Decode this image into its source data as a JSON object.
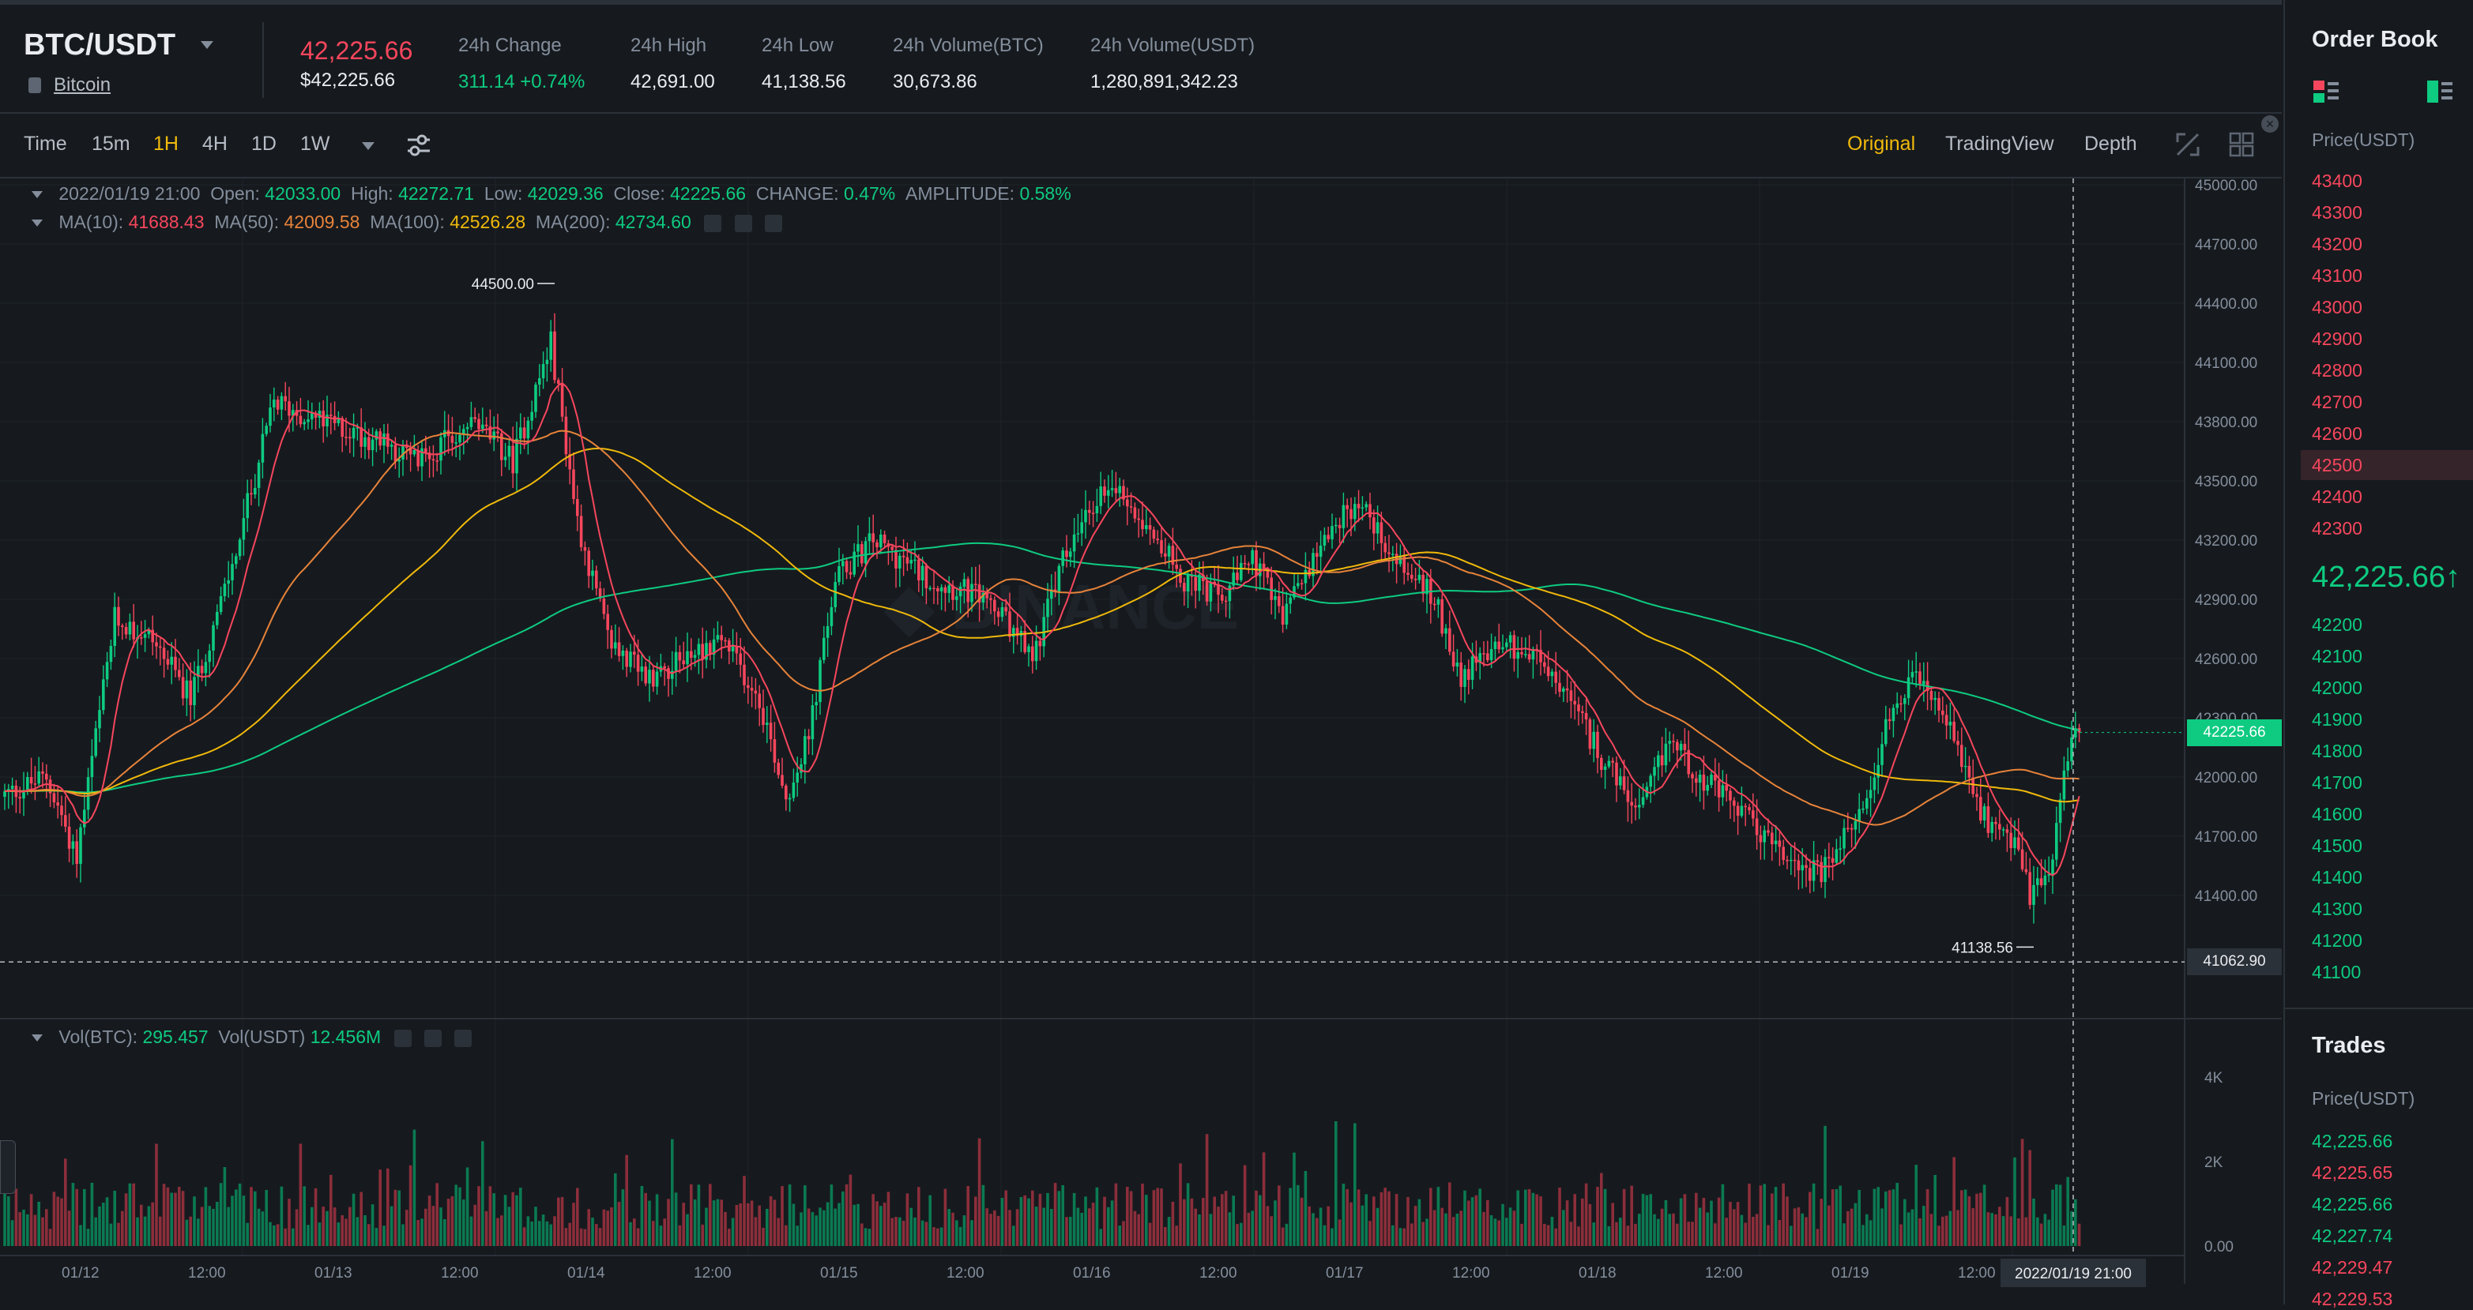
{
  "header": {
    "pair": "BTC/USDT",
    "coin_name": "Bitcoin",
    "last_price": "42,225.66",
    "last_price_usd": "$42,225.66",
    "stats": [
      {
        "label": "24h Change",
        "value": "311.14 +0.74%",
        "up": true
      },
      {
        "label": "24h High",
        "value": "42,691.00",
        "up": false
      },
      {
        "label": "24h Low",
        "value": "41,138.56",
        "up": false
      },
      {
        "label": "24h Volume(BTC)",
        "value": "30,673.86",
        "up": false
      },
      {
        "label": "24h Volume(USDT)",
        "value": "1,280,891,342.23",
        "up": false
      }
    ]
  },
  "toolbar": {
    "timeframes": [
      "Time",
      "15m",
      "1H",
      "4H",
      "1D",
      "1W"
    ],
    "active_timeframe": "1H",
    "views": [
      "Original",
      "TradingView",
      "Depth"
    ],
    "active_view": "Original"
  },
  "info": {
    "datetime": "2022/01/19 21:00",
    "open_label": "Open:",
    "open": "42033.00",
    "high_label": "High:",
    "high": "42272.71",
    "low_label": "Low:",
    "low": "42029.36",
    "close_label": "Close:",
    "close": "42225.66",
    "change_label": "CHANGE:",
    "change": "0.47%",
    "amplitude_label": "AMPLITUDE:",
    "amplitude": "0.58%",
    "ma10_label": "MA(10):",
    "ma10": "41688.43",
    "ma50_label": "MA(50):",
    "ma50": "42009.58",
    "ma100_label": "MA(100):",
    "ma100": "42526.28",
    "ma200_label": "MA(200):",
    "ma200": "42734.60",
    "vol_btc_label": "Vol(BTC):",
    "vol_btc": "295.457",
    "vol_usdt_label": "Vol(USDT)",
    "vol_usdt": "12.456M"
  },
  "chart_data": {
    "type": "candlestick",
    "price_axis": [
      45000,
      44700,
      44400,
      44100,
      43800,
      43500,
      43200,
      42900,
      42600,
      42300,
      42000,
      41700,
      41400
    ],
    "price_axis_labels": [
      "45000.00",
      "44700.00",
      "44400.00",
      "44100.00",
      "43800.00",
      "43500.00",
      "43200.00",
      "42900.00",
      "42600.00",
      "42300.00",
      "42000.00",
      "41700.00",
      "41400.00"
    ],
    "volume_axis_labels": [
      "4K",
      "2K",
      "0.00"
    ],
    "volume_axis": [
      4000,
      2000,
      0
    ],
    "time_labels": [
      "01/12",
      "12:00",
      "01/13",
      "12:00",
      "01/14",
      "12:00",
      "01/15",
      "12:00",
      "01/16",
      "12:00",
      "01/17",
      "12:00",
      "01/18",
      "12:00",
      "01/19",
      "12:00"
    ],
    "current_price_tag": "42225.66",
    "current_price": 42225.66,
    "crosshair_price_tag": "41062.90",
    "crosshair_price": 41062.9,
    "crosshair_time": "2022/01/19 21:00",
    "high_marker": "44500.00",
    "high_value": 44500,
    "low_marker": "41138.56",
    "low_value": 41138.56,
    "up_color": "#0ECB81",
    "down_color": "#F6465D",
    "ma_colors": {
      "ma10": "#F6465D",
      "ma50": "#E8833A",
      "ma100": "#F0B90B",
      "ma200": "#0ECB81"
    },
    "keypoints": [
      [
        0,
        41900
      ],
      [
        12,
        42000
      ],
      [
        20,
        41600
      ],
      [
        30,
        42800
      ],
      [
        40,
        42700
      ],
      [
        50,
        42400
      ],
      [
        60,
        43000
      ],
      [
        72,
        43900
      ],
      [
        85,
        43800
      ],
      [
        100,
        43700
      ],
      [
        110,
        43600
      ],
      [
        125,
        43800
      ],
      [
        135,
        43600
      ],
      [
        145,
        44200
      ],
      [
        152,
        43300
      ],
      [
        160,
        42700
      ],
      [
        170,
        42500
      ],
      [
        180,
        42600
      ],
      [
        190,
        42700
      ],
      [
        200,
        42400
      ],
      [
        207,
        41900
      ],
      [
        213,
        42200
      ],
      [
        220,
        43000
      ],
      [
        230,
        43200
      ],
      [
        245,
        43000
      ],
      [
        260,
        42900
      ],
      [
        272,
        42600
      ],
      [
        280,
        43100
      ],
      [
        292,
        43500
      ],
      [
        302,
        43300
      ],
      [
        312,
        43000
      ],
      [
        322,
        42900
      ],
      [
        330,
        43100
      ],
      [
        338,
        42800
      ],
      [
        348,
        43200
      ],
      [
        358,
        43400
      ],
      [
        368,
        43100
      ],
      [
        378,
        42900
      ],
      [
        385,
        42500
      ],
      [
        395,
        42700
      ],
      [
        405,
        42600
      ],
      [
        413,
        42400
      ],
      [
        422,
        42100
      ],
      [
        432,
        41800
      ],
      [
        440,
        42200
      ],
      [
        448,
        42000
      ],
      [
        460,
        41800
      ],
      [
        470,
        41600
      ],
      [
        480,
        41500
      ],
      [
        490,
        41800
      ],
      [
        498,
        42300
      ],
      [
        505,
        42500
      ],
      [
        515,
        42200
      ],
      [
        522,
        41800
      ],
      [
        530,
        41700
      ],
      [
        535,
        41400
      ],
      [
        540,
        41500
      ],
      [
        544,
        42000
      ],
      [
        547,
        42230
      ]
    ]
  },
  "orderbook": {
    "title": "Order Book",
    "price_header": "Price(USDT)",
    "asks": [
      "43400",
      "43300",
      "43200",
      "43100",
      "43000",
      "42900",
      "42800",
      "42700",
      "42600",
      "42500",
      "42400",
      "42300"
    ],
    "highlight_ask": "42500",
    "mid_price": "42,225.66",
    "mid_arrow": "↑",
    "bids": [
      "42200",
      "42100",
      "42000",
      "41900",
      "41800",
      "41700",
      "41600",
      "41500",
      "41400",
      "41300",
      "41200",
      "41100"
    ]
  },
  "trades": {
    "title": "Trades",
    "price_header": "Price(USDT)",
    "rows": [
      {
        "price": "42,225.66",
        "up": true
      },
      {
        "price": "42,225.65",
        "up": false
      },
      {
        "price": "42,225.66",
        "up": true
      },
      {
        "price": "42,227.74",
        "up": true
      },
      {
        "price": "42,229.47",
        "up": false
      },
      {
        "price": "42,229.53",
        "up": false
      }
    ]
  }
}
